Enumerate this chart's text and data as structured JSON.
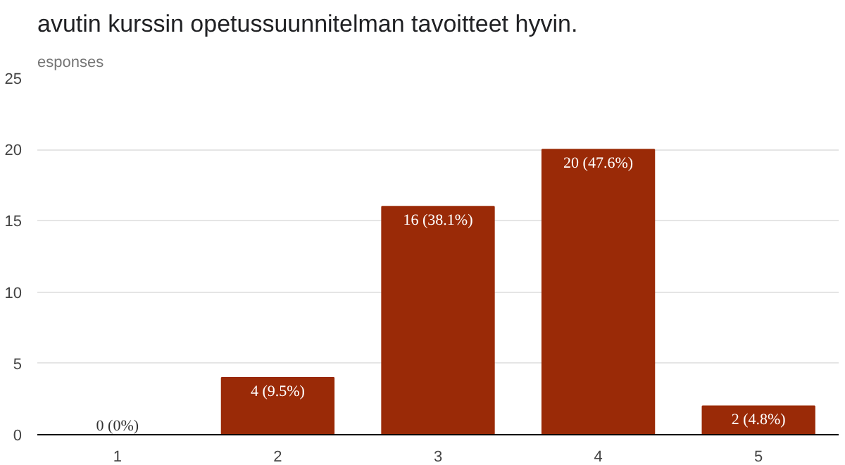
{
  "chart_data": {
    "type": "bar",
    "title": "avutin kurssin opetussuunnitelman tavoitteet hyvin.",
    "subtitle": "esponses",
    "categories": [
      "1",
      "2",
      "3",
      "4",
      "5"
    ],
    "values": [
      0,
      4,
      16,
      20,
      2
    ],
    "value_labels": [
      "0 (0%)",
      "4 (9.5%)",
      "16 (38.1%)",
      "20 (47.6%)",
      "2 (4.8%)"
    ],
    "color": "#9a2a07",
    "ylim": [
      0,
      25
    ],
    "yticks": [
      0,
      5,
      10,
      15,
      20,
      25
    ],
    "grid": "y"
  }
}
